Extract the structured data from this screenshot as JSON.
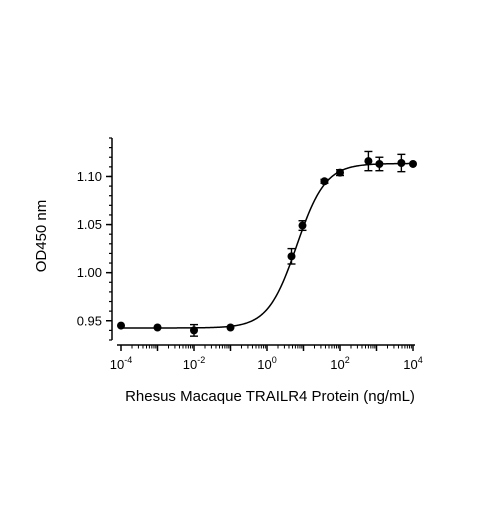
{
  "chart_data": {
    "type": "scatter",
    "xlabel": "Rhesus Macaque TRAILR4 Protein (ng/mL)",
    "ylabel": "OD450 nm",
    "xscale": "log",
    "xlim": [
      0.0001,
      10000
    ],
    "ylim": [
      0.93,
      1.14
    ],
    "x_ticks": [
      {
        "value": 0.0001,
        "base": "10",
        "exp": "-4"
      },
      {
        "value": 0.01,
        "base": "10",
        "exp": "-2"
      },
      {
        "value": 1,
        "base": "10",
        "exp": "0"
      },
      {
        "value": 100,
        "base": "10",
        "exp": "2"
      },
      {
        "value": 10000,
        "base": "10",
        "exp": "4"
      }
    ],
    "y_ticks": [
      {
        "value": 0.95,
        "label": "0.95"
      },
      {
        "value": 1.0,
        "label": "1.00"
      },
      {
        "value": 1.05,
        "label": "1.05"
      },
      {
        "value": 1.1,
        "label": "1.10"
      }
    ],
    "grid": false,
    "legend": "none",
    "series": [
      {
        "points": [
          {
            "x": 0.0001,
            "y": 0.945,
            "err": 0.0
          },
          {
            "x": 0.001,
            "y": 0.943,
            "err": 0.0
          },
          {
            "x": 0.01,
            "y": 0.94,
            "err": 0.006
          },
          {
            "x": 0.1,
            "y": 0.943,
            "err": 0.0
          },
          {
            "x": 4.69,
            "y": 1.017,
            "err": 0.008
          },
          {
            "x": 9.38,
            "y": 1.049,
            "err": 0.005
          },
          {
            "x": 37.5,
            "y": 1.095,
            "err": 0.002
          },
          {
            "x": 100,
            "y": 1.104,
            "err": 0.003
          },
          {
            "x": 600,
            "y": 1.116,
            "err": 0.01
          },
          {
            "x": 1200,
            "y": 1.113,
            "err": 0.007
          },
          {
            "x": 4800,
            "y": 1.114,
            "err": 0.009
          },
          {
            "x": 10000,
            "y": 1.113,
            "err": 0.0
          }
        ],
        "fit": {
          "bottom": 0.9425,
          "top": 1.1135,
          "ec50": 6.5,
          "hill": 1.1
        }
      }
    ]
  }
}
